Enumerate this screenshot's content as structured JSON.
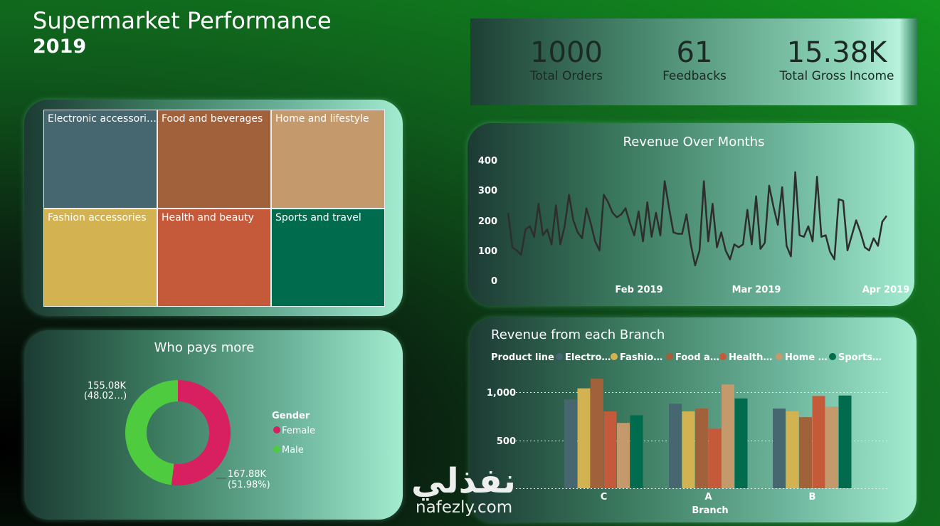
{
  "header": {
    "title": "Supermarket Performance",
    "year": "2019"
  },
  "kpis": [
    {
      "value": "1000",
      "label": "Total Orders"
    },
    {
      "value": "61",
      "label": "Feedbacks"
    },
    {
      "value": "15.38K",
      "label": "Total Gross Income"
    }
  ],
  "treemap": {
    "tiles": [
      {
        "label": "Electronic accessori…",
        "color": "#466770"
      },
      {
        "label": "Food and beverages",
        "color": "#a0613b"
      },
      {
        "label": "Home and lifestyle",
        "color": "#c49a6c"
      },
      {
        "label": "Fashion accessories",
        "color": "#d3b251"
      },
      {
        "label": "Health and beauty",
        "color": "#c55a3b"
      },
      {
        "label": "Sports and travel",
        "color": "#006b4d"
      }
    ]
  },
  "donut": {
    "title": "Who pays more",
    "legend_title": "Gender",
    "slices": [
      {
        "name": "Female",
        "value_label": "167.88K",
        "pct_label": "(51.98%)",
        "pct": 51.98,
        "color": "#d81f60"
      },
      {
        "name": "Male",
        "value_label": "155.08K",
        "pct_label": "(48.02…)",
        "pct": 48.02,
        "color": "#4fcb3f"
      }
    ]
  },
  "line": {
    "title": "Revenue Over Months",
    "y_ticks": [
      "400",
      "300",
      "200",
      "100",
      "0"
    ],
    "x_ticks": [
      "Feb 2019",
      "Mar 2019",
      "Apr 2019"
    ]
  },
  "bars": {
    "title": "Revenue from each Branch",
    "legend_title": "Product line",
    "legend": [
      "Electro…",
      "Fashio…",
      "Food a…",
      "Health…",
      "Home …",
      "Sports…"
    ],
    "y_ticks": [
      "1,000",
      "500"
    ],
    "x_title": "Branch"
  },
  "watermark": {
    "arabic": "نفذلي",
    "latin": "nafezly.com"
  },
  "chart_data": [
    {
      "type": "pie",
      "title": "Who pays more",
      "legend_title": "Gender",
      "labels": [
        "Female",
        "Male"
      ],
      "values": [
        167.88,
        155.08
      ],
      "units": "K",
      "hole": true
    },
    {
      "type": "line",
      "title": "Revenue Over Months",
      "x_start": "2019-01-01",
      "x_end": "2019-03-30",
      "x_ticks": [
        "Feb 2019",
        "Mar 2019",
        "Apr 2019"
      ],
      "ylim": [
        0,
        400
      ],
      "values": [
        225,
        110,
        100,
        85,
        170,
        180,
        145,
        255,
        150,
        170,
        120,
        250,
        120,
        180,
        285,
        200,
        160,
        140,
        240,
        190,
        130,
        100,
        285,
        260,
        225,
        210,
        220,
        240,
        190,
        150,
        230,
        130,
        260,
        145,
        225,
        150,
        330,
        240,
        160,
        155,
        155,
        220,
        120,
        50,
        100,
        330,
        130,
        255,
        110,
        160,
        100,
        70,
        120,
        110,
        120,
        235,
        120,
        280,
        105,
        125,
        315,
        245,
        185,
        310,
        115,
        80,
        360,
        150,
        145,
        180,
        130,
        345,
        145,
        150,
        95,
        70,
        270,
        265,
        100,
        150,
        200,
        160,
        110,
        100,
        140,
        115,
        195,
        215
      ]
    },
    {
      "type": "bar",
      "title": "Revenue from each Branch",
      "xlabel": "Branch",
      "legend_title": "Product line",
      "categories": [
        "C",
        "A",
        "B"
      ],
      "ylim": [
        0,
        1200
      ],
      "series": [
        {
          "name": "Electro…",
          "color": "#466770",
          "values": [
            925,
            880,
            830
          ]
        },
        {
          "name": "Fashio…",
          "color": "#d3b251",
          "values": [
            1040,
            800,
            800
          ]
        },
        {
          "name": "Food a…",
          "color": "#a0613b",
          "values": [
            1140,
            830,
            740
          ]
        },
        {
          "name": "Health…",
          "color": "#c55a3b",
          "values": [
            800,
            620,
            960
          ]
        },
        {
          "name": "Home …",
          "color": "#c49a6c",
          "values": [
            680,
            1080,
            850
          ]
        },
        {
          "name": "Sports…",
          "color": "#006b4d",
          "values": [
            760,
            935,
            965
          ]
        }
      ]
    }
  ]
}
